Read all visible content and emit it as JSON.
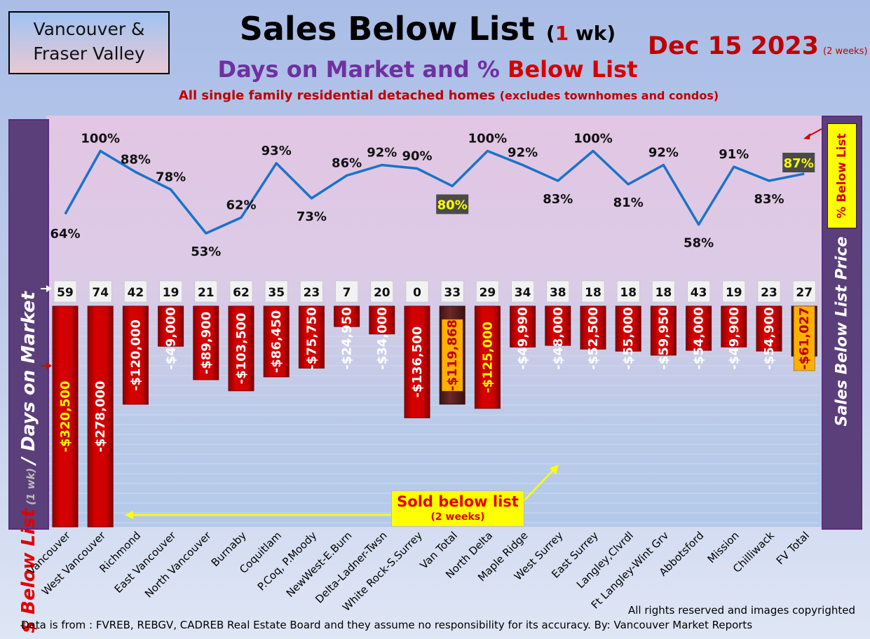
{
  "region": {
    "line1": "Vancouver &",
    "line2": "Fraser Valley"
  },
  "title": {
    "main": "Sales Below List",
    "paren_open": "(",
    "one": "1",
    "wk": " wk)"
  },
  "subtitle": {
    "part1": "Days on Market and % ",
    "part2": "Below List"
  },
  "description": {
    "main": "All single family residential detached homes ",
    "sub": "(excludes townhomes and condos)"
  },
  "date": {
    "main": "Dec 15  2023",
    "note": "(2 weeks)"
  },
  "left_axis": {
    "part1": "$ Below List",
    "part2": " (1 wk) ",
    "part3": "/ Days on Market"
  },
  "right_axis": {
    "pct": "% Below List",
    "price": "Sales Below List Price"
  },
  "callout": {
    "line1": "Sold below list",
    "line2": "(2 weeks)"
  },
  "footer": {
    "rights": "All rights reserved and  images copyrighted",
    "source": "Data is from : FVREB, REBGV, CADREB Real Estate Board and they assume no responsibility for its accuracy. By: Vancouver Market Reports"
  },
  "colors": {
    "bar": "#cc0000",
    "total_bar": "#6b2424",
    "line": "#1a73c8",
    "highlight": "#ffff00"
  },
  "chart_data": {
    "type": "bar",
    "categories": [
      "Vancouver",
      "West Vancouver",
      "Richmond",
      "East Vancouver",
      "North Vancouver",
      "Burnaby",
      "Coquitlam",
      "P.Coq, P.Moody",
      "NewWest-E.Burn",
      "Delta-Ladner-Twsn",
      "White Rock-S.Surrey",
      "Van Total",
      "North Delta",
      "Maple Ridge",
      "West Surrey",
      "East Surrey",
      "Langley,Clvrdl",
      "Ft Langley-Wint Grv",
      "Abbotsford",
      "Mission",
      "Chilliwack",
      "FV Total"
    ],
    "below_list_price_labels": [
      "-$320,500",
      "-$278,000",
      "-$120,000",
      "-$49,000",
      "-$89,900",
      "-$103,500",
      "-$86,450",
      "-$75,750",
      "-$24,950",
      "-$34,000",
      "-$136,500",
      "-$119,868",
      "-$125,000",
      "-$49,990",
      "-$48,000",
      "-$52,500",
      "-$55,000",
      "-$59,950",
      "-$54,000",
      "-$49,900",
      "-$54,900",
      "-$61,027"
    ],
    "below_list_price": [
      -320500,
      -278000,
      -120000,
      -49000,
      -89900,
      -103500,
      -86450,
      -75750,
      -24950,
      -34000,
      -136500,
      -119868,
      -125000,
      -49990,
      -48000,
      -52500,
      -55000,
      -59950,
      -54000,
      -49900,
      -54900,
      -61027
    ],
    "days_on_market": [
      59,
      74,
      42,
      19,
      21,
      62,
      35,
      23,
      7,
      20,
      0,
      33,
      29,
      34,
      38,
      18,
      18,
      18,
      43,
      19,
      23,
      27
    ],
    "pct_below_list": [
      64,
      100,
      88,
      78,
      53,
      62,
      93,
      73,
      86,
      92,
      90,
      80,
      100,
      92,
      83,
      100,
      81,
      92,
      58,
      91,
      83,
      87
    ],
    "pct_labels": [
      "64%",
      "100%",
      "88%",
      "78%",
      "53%",
      "62%",
      "93%",
      "73%",
      "86%",
      "92%",
      "90%",
      "80%",
      "100%",
      "92%",
      "83%",
      "100%",
      "81%",
      "92%",
      "58%",
      "91%",
      "83%",
      "87%"
    ],
    "totals": [
      "Van Total",
      "FV Total"
    ],
    "ylabel": "$ Below List (1 wk) / Days on Market",
    "y2label": "% Below List"
  }
}
